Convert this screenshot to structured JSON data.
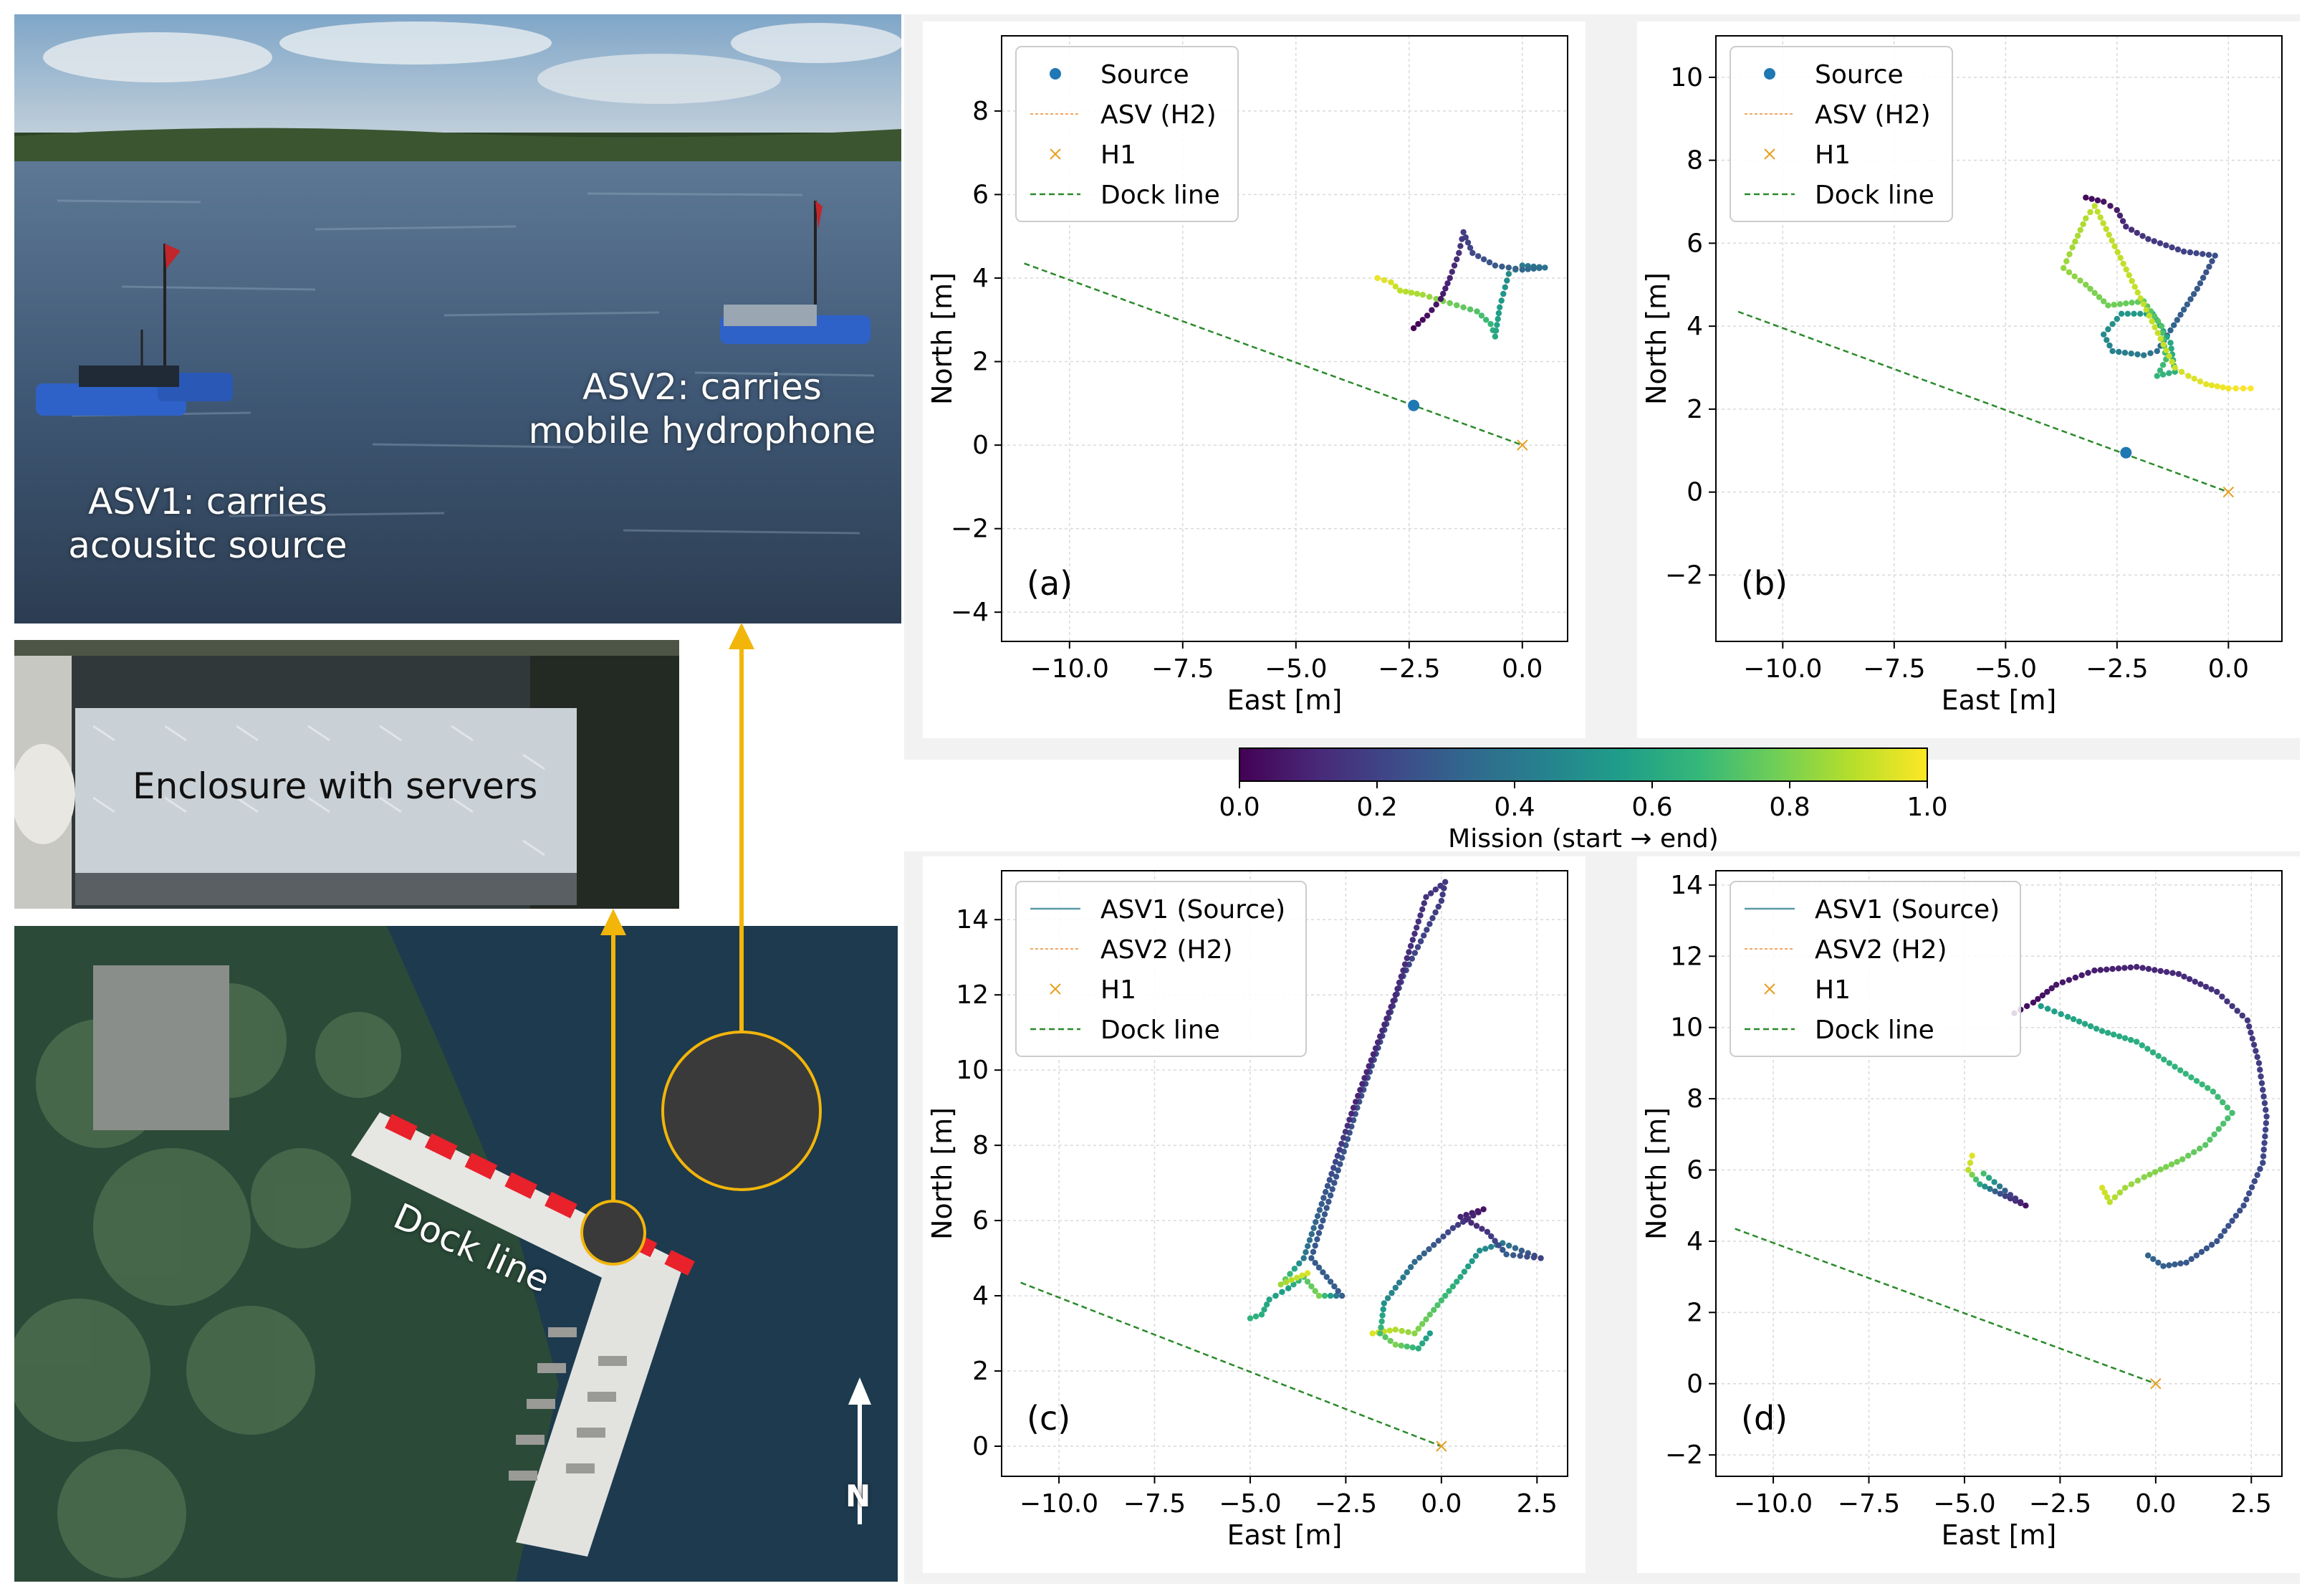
{
  "photos": {
    "lake_caption_asv1": "ASV1: carries\nacousitc source",
    "lake_caption_asv2": "ASV2: carries\nmobile hydrophone",
    "enclosure_caption": "Enclosure with servers",
    "dock_caption": "Dock line",
    "north_label": "N"
  },
  "colorbar": {
    "label": "Mission (start → end)",
    "ticks": [
      "0.0",
      "0.2",
      "0.4",
      "0.6",
      "0.8",
      "1.0"
    ],
    "colormap": "viridis"
  },
  "chart_data": [
    {
      "panel": "(a)",
      "type": "scatter",
      "xlabel": "East [m]",
      "ylabel": "North [m]",
      "xlim": [
        -11.5,
        1.0
      ],
      "ylim": [
        -4.7,
        9.8
      ],
      "xticks": [
        -10.0,
        -7.5,
        -5.0,
        -2.5,
        0.0
      ],
      "yticks": [
        -4,
        -2,
        0,
        2,
        4,
        6,
        8
      ],
      "legend": {
        "position": "upper-left",
        "entries": [
          "Source",
          "ASV (H2)",
          "H1",
          "Dock line"
        ]
      },
      "source_point": [
        -2.4,
        0.95
      ],
      "h1_point": [
        0.0,
        0.0
      ],
      "dock_line": [
        [
          -11.0,
          4.35
        ],
        [
          0.0,
          0.0
        ]
      ],
      "series": [
        {
          "name": "ASV (H2)",
          "values": [
            [
              -3.2,
              4.0
            ],
            [
              -2.9,
              3.9
            ],
            [
              -2.7,
              3.7
            ],
            [
              -2.2,
              3.6
            ],
            [
              -1.6,
              3.4
            ],
            [
              -1.0,
              3.2
            ],
            [
              -0.7,
              2.9
            ],
            [
              -0.6,
              2.6
            ],
            [
              -0.5,
              3.3
            ],
            [
              -0.3,
              4.1
            ],
            [
              0.0,
              4.3
            ],
            [
              0.5,
              4.25
            ],
            [
              0.0,
              4.2
            ],
            [
              -0.6,
              4.3
            ],
            [
              -1.1,
              4.6
            ],
            [
              -1.3,
              5.1
            ],
            [
              -1.4,
              4.6
            ],
            [
              -1.6,
              4.0
            ],
            [
              -1.8,
              3.5
            ],
            [
              -2.1,
              3.1
            ],
            [
              -2.4,
              2.8
            ]
          ],
          "progress": [
            0.97,
            0.94,
            0.9,
            0.86,
            0.78,
            0.72,
            0.66,
            0.6,
            0.55,
            0.48,
            0.42,
            0.38,
            0.33,
            0.28,
            0.22,
            0.18,
            0.14,
            0.1,
            0.07,
            0.04,
            0.0
          ]
        }
      ]
    },
    {
      "panel": "(b)",
      "type": "scatter",
      "xlabel": "East [m]",
      "ylabel": "North [m]",
      "xlim": [
        -11.5,
        1.2
      ],
      "ylim": [
        -3.6,
        11.0
      ],
      "xticks": [
        -10.0,
        -7.5,
        -5.0,
        -2.5,
        0.0
      ],
      "yticks": [
        -2,
        0,
        2,
        4,
        6,
        8,
        10
      ],
      "legend": {
        "position": "upper-left",
        "entries": [
          "Source",
          "ASV (H2)",
          "H1",
          "Dock line"
        ]
      },
      "source_point": [
        -2.3,
        0.95
      ],
      "h1_point": [
        0.0,
        0.0
      ],
      "dock_line": [
        [
          -11.0,
          4.35
        ],
        [
          0.0,
          0.0
        ]
      ],
      "series": [
        {
          "name": "ASV (H2)",
          "values": [
            [
              -3.2,
              7.1
            ],
            [
              -2.8,
              7.0
            ],
            [
              -2.5,
              6.8
            ],
            [
              -2.3,
              6.4
            ],
            [
              -1.8,
              6.1
            ],
            [
              -1.0,
              5.8
            ],
            [
              -0.3,
              5.7
            ],
            [
              -0.7,
              4.9
            ],
            [
              -1.3,
              3.9
            ],
            [
              -1.6,
              3.4
            ],
            [
              -1.9,
              3.3
            ],
            [
              -2.6,
              3.4
            ],
            [
              -2.8,
              3.8
            ],
            [
              -2.4,
              4.3
            ],
            [
              -1.7,
              4.3
            ],
            [
              -1.3,
              3.6
            ],
            [
              -1.2,
              2.9
            ],
            [
              -1.6,
              2.8
            ],
            [
              -1.4,
              3.2
            ],
            [
              -1.5,
              4.0
            ],
            [
              -1.9,
              4.6
            ],
            [
              -2.7,
              4.5
            ],
            [
              -3.2,
              5.0
            ],
            [
              -3.7,
              5.4
            ],
            [
              -3.5,
              5.9
            ],
            [
              -3.2,
              6.6
            ],
            [
              -3.0,
              6.9
            ],
            [
              -1.2,
              3.0
            ],
            [
              -0.9,
              2.8
            ],
            [
              -0.5,
              2.6
            ],
            [
              0.0,
              2.5
            ],
            [
              0.5,
              2.5
            ]
          ],
          "progress": [
            0.02,
            0.05,
            0.08,
            0.12,
            0.16,
            0.2,
            0.24,
            0.28,
            0.32,
            0.36,
            0.4,
            0.44,
            0.48,
            0.52,
            0.56,
            0.6,
            0.63,
            0.66,
            0.69,
            0.72,
            0.75,
            0.78,
            0.81,
            0.84,
            0.86,
            0.88,
            0.9,
            0.92,
            0.94,
            0.96,
            0.98,
            1.0
          ]
        }
      ]
    },
    {
      "panel": "(c)",
      "type": "scatter",
      "xlabel": "East [m]",
      "ylabel": "North [m]",
      "xlim": [
        -11.5,
        3.3
      ],
      "ylim": [
        -0.8,
        15.3
      ],
      "xticks": [
        -10.0,
        -7.5,
        -5.0,
        -2.5,
        0.0,
        2.5
      ],
      "yticks": [
        0,
        2,
        4,
        6,
        8,
        10,
        12,
        14
      ],
      "legend": {
        "position": "upper-left",
        "entries": [
          "ASV1 (Source)",
          "ASV2 (H2)",
          "H1",
          "Dock line"
        ]
      },
      "h1_point": [
        0.0,
        0.0
      ],
      "dock_line": [
        [
          -11.0,
          4.35
        ],
        [
          0.0,
          0.0
        ]
      ],
      "series": [
        {
          "name": "ASV1 (Source)",
          "values": [
            [
              -5.0,
              3.4
            ],
            [
              -4.7,
              3.5
            ],
            [
              -4.5,
              3.9
            ],
            [
              -4.0,
              4.2
            ],
            [
              -3.6,
              4.5
            ],
            [
              -3.2,
              4.0
            ],
            [
              -2.6,
              4.0
            ],
            [
              -3.4,
              5.0
            ],
            [
              -2.2,
              9.0
            ],
            [
              -1.0,
              12.5
            ],
            [
              0.0,
              14.5
            ],
            [
              0.1,
              15.0
            ],
            [
              -0.4,
              14.6
            ],
            [
              -1.2,
              12.0
            ],
            [
              -2.3,
              9.0
            ],
            [
              -3.6,
              5.0
            ],
            [
              -4.2,
              4.3
            ],
            [
              -3.5,
              4.6
            ]
          ],
          "progress": [
            0.65,
            0.62,
            0.58,
            0.55,
            0.72,
            0.8,
            0.3,
            0.28,
            0.25,
            0.22,
            0.18,
            0.16,
            0.14,
            0.12,
            0.1,
            0.4,
            0.85,
            0.95
          ]
        },
        {
          "name": "ASV2 (H2)",
          "values": [
            [
              -1.8,
              3.0
            ],
            [
              -1.2,
              3.1
            ],
            [
              -0.7,
              3.0
            ],
            [
              -0.3,
              3.5
            ],
            [
              0.5,
              4.5
            ],
            [
              1.0,
              5.2
            ],
            [
              1.6,
              5.4
            ],
            [
              2.6,
              5.0
            ],
            [
              1.7,
              5.1
            ],
            [
              1.2,
              5.7
            ],
            [
              0.5,
              6.1
            ],
            [
              1.1,
              6.3
            ],
            [
              0.3,
              5.8
            ],
            [
              -0.7,
              4.9
            ],
            [
              -1.5,
              3.8
            ],
            [
              -1.6,
              3.0
            ],
            [
              -1.2,
              2.7
            ],
            [
              -0.6,
              2.6
            ],
            [
              -0.3,
              3.0
            ]
          ],
          "progress": [
            0.95,
            0.88,
            0.82,
            0.75,
            0.6,
            0.5,
            0.4,
            0.2,
            0.3,
            0.15,
            0.1,
            0.05,
            0.2,
            0.35,
            0.5,
            0.7,
            0.8,
            0.62,
            0.55
          ]
        }
      ]
    },
    {
      "panel": "(d)",
      "type": "scatter",
      "xlabel": "East [m]",
      "ylabel": "North [m]",
      "xlim": [
        -11.5,
        3.3
      ],
      "ylim": [
        -2.6,
        14.4
      ],
      "xticks": [
        -10.0,
        -7.5,
        -5.0,
        -2.5,
        0.0,
        2.5
      ],
      "yticks": [
        -2,
        0,
        2,
        4,
        6,
        8,
        10,
        12,
        14
      ],
      "legend": {
        "position": "upper-left",
        "entries": [
          "ASV1 (Source)",
          "ASV2 (H2)",
          "H1",
          "Dock line"
        ]
      },
      "h1_point": [
        0.0,
        0.0
      ],
      "dock_line": [
        [
          -11.0,
          4.35
        ],
        [
          0.0,
          0.0
        ]
      ],
      "series": [
        {
          "name": "ASV1 (Source)",
          "values": [
            [
              -3.7,
              10.4
            ],
            [
              -3.2,
              10.7
            ],
            [
              -2.6,
              11.2
            ],
            [
              -1.6,
              11.6
            ],
            [
              -0.5,
              11.7
            ],
            [
              0.6,
              11.5
            ],
            [
              1.6,
              11.0
            ],
            [
              2.4,
              10.2
            ],
            [
              2.7,
              9.0
            ],
            [
              2.9,
              7.5
            ],
            [
              2.8,
              6.2
            ],
            [
              2.3,
              5.0
            ],
            [
              1.6,
              4.0
            ],
            [
              0.8,
              3.4
            ],
            [
              0.2,
              3.3
            ],
            [
              -0.2,
              3.6
            ]
          ],
          "progress": [
            0.02,
            0.04,
            0.06,
            0.08,
            0.1,
            0.12,
            0.14,
            0.16,
            0.18,
            0.2,
            0.22,
            0.24,
            0.26,
            0.28,
            0.3,
            0.32
          ]
        },
        {
          "name": "ASV1 (Source)",
          "values": [
            [
              -3.0,
              10.6
            ],
            [
              -2.3,
              10.3
            ],
            [
              -1.4,
              9.9
            ],
            [
              -0.5,
              9.6
            ],
            [
              0.5,
              8.9
            ],
            [
              1.5,
              8.2
            ],
            [
              2.0,
              7.6
            ],
            [
              1.3,
              6.7
            ],
            [
              0.7,
              6.3
            ],
            [
              -0.3,
              5.8
            ],
            [
              -0.8,
              5.5
            ],
            [
              -1.2,
              5.1
            ],
            [
              -1.4,
              5.5
            ]
          ],
          "progress": [
            0.55,
            0.58,
            0.6,
            0.62,
            0.65,
            0.68,
            0.7,
            0.74,
            0.78,
            0.82,
            0.86,
            0.9,
            0.94
          ]
        },
        {
          "name": "ASV2 (H2)",
          "values": [
            [
              -4.8,
              6.4
            ],
            [
              -4.9,
              6.0
            ],
            [
              -4.6,
              5.6
            ],
            [
              -4.2,
              5.4
            ],
            [
              -3.8,
              5.2
            ],
            [
              -3.4,
              5.0
            ],
            [
              -3.8,
              5.3
            ],
            [
              -4.5,
              5.9
            ]
          ],
          "progress": [
            0.95,
            0.9,
            0.6,
            0.3,
            0.15,
            0.05,
            0.2,
            0.7
          ]
        }
      ]
    }
  ],
  "panel_labels": [
    "(a)",
    "(b)",
    "(c)",
    "(d)"
  ]
}
